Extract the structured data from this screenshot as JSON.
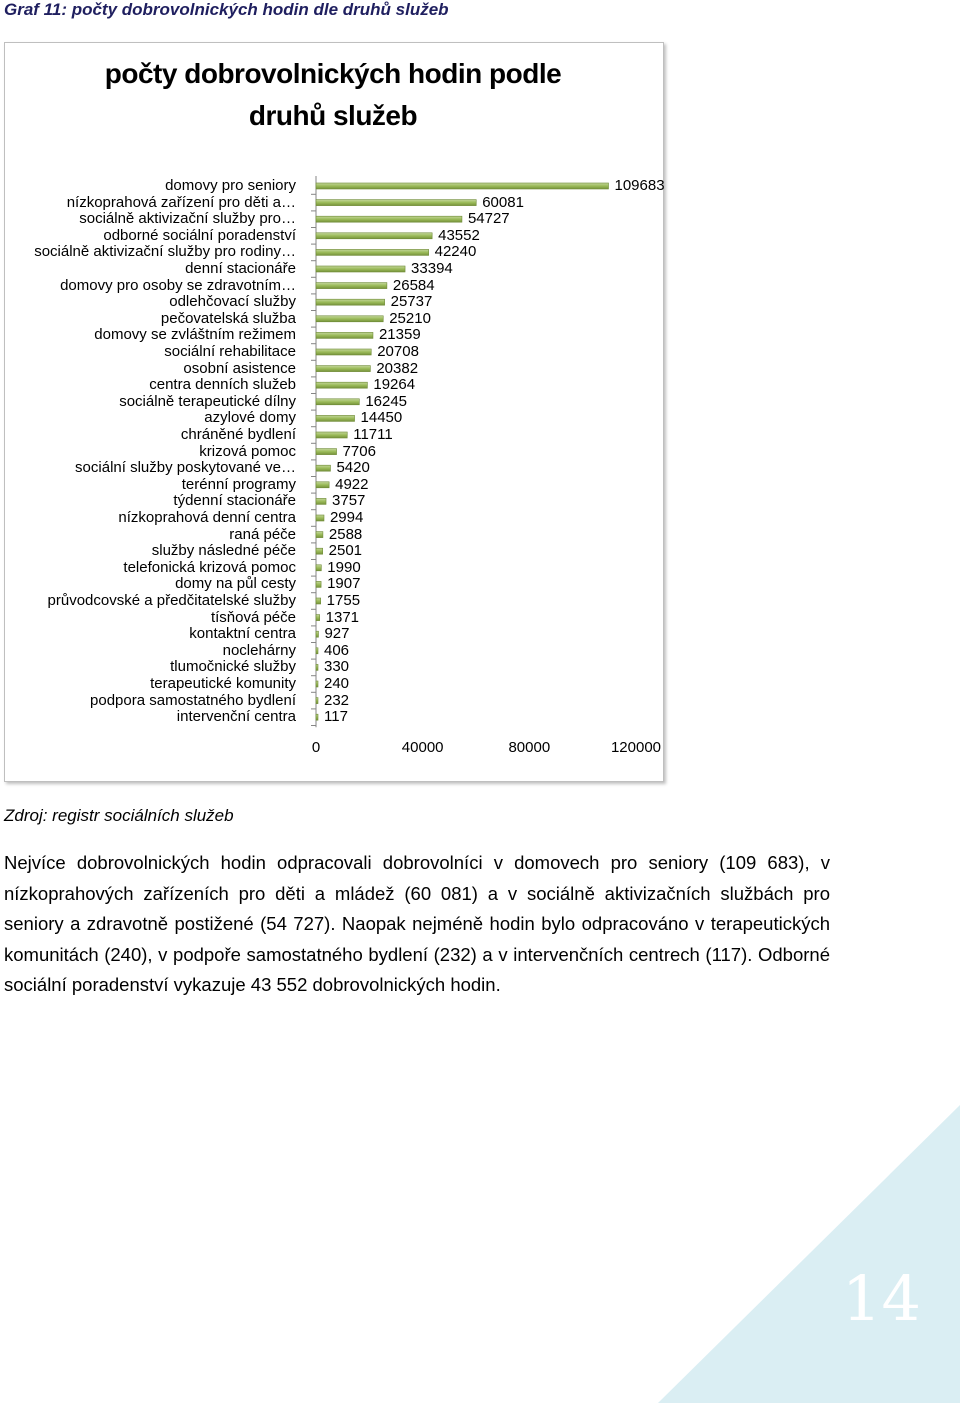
{
  "caption": "Graf 11:  počty dobrovolnických hodin dle druhů služeb",
  "chart_data": {
    "type": "bar",
    "orientation": "horizontal",
    "title_line1": "počty dobrovolnických hodin podle",
    "title_line2": "druhů služeb",
    "categories": [
      "domovy pro seniory",
      "nízkoprahová zařízení pro děti a…",
      "sociálně aktivizační služby pro…",
      "odborné sociální poradenství",
      "sociálně aktivizační služby pro rodiny…",
      "denní stacionáře",
      "domovy pro osoby se zdravotním…",
      "odlehčovací služby",
      "pečovatelská služba",
      "domovy se zvláštním režimem",
      "sociální rehabilitace",
      "osobní asistence",
      "centra denních služeb",
      "sociálně terapeutické dílny",
      "azylové domy",
      "chráněné bydlení",
      "krizová pomoc",
      "sociální služby poskytované ve…",
      "terénní programy",
      "týdenní stacionáře",
      "nízkoprahová denní centra",
      "raná péče",
      "služby následné péče",
      "telefonická krizová pomoc",
      "domy na půl cesty",
      "průvodcovské a předčitatelské služby",
      "tísňová péče",
      "kontaktní centra",
      "noclehárny",
      "tlumočnické služby",
      "terapeutické komunity",
      "podpora samostatného bydlení",
      "intervenční centra"
    ],
    "values": [
      109683,
      60081,
      54727,
      43552,
      42240,
      33394,
      26584,
      25737,
      25210,
      21359,
      20708,
      20382,
      19264,
      16245,
      14450,
      11711,
      7706,
      5420,
      4922,
      3757,
      2994,
      2588,
      2501,
      1990,
      1907,
      1755,
      1371,
      927,
      406,
      330,
      240,
      232,
      117
    ],
    "xlim": [
      0,
      120000
    ],
    "x_ticks": [
      "0",
      "40000",
      "80000",
      "120000"
    ],
    "bar_color": "#9bbb59",
    "legend": false
  },
  "source": "Zdroj: registr sociálních služeb",
  "paragraph": "Nejvíce dobrovolnických hodin odpracovali dobrovolníci v domovech pro seniory (109 683), v nízkoprahových zařízeních pro děti a mládež (60 081) a v sociálně aktivizačních službách pro seniory a zdravotně postižené (54 727). Naopak nejméně hodin bylo odpracováno v terapeutických komunitách (240), v podpoře samostatného bydlení (232) a v intervenčních centrech (117). Odborné sociální poradenství vykazuje 43 552 dobrovolnických hodin.",
  "page_number": "14",
  "corner_color": "#daeef3"
}
